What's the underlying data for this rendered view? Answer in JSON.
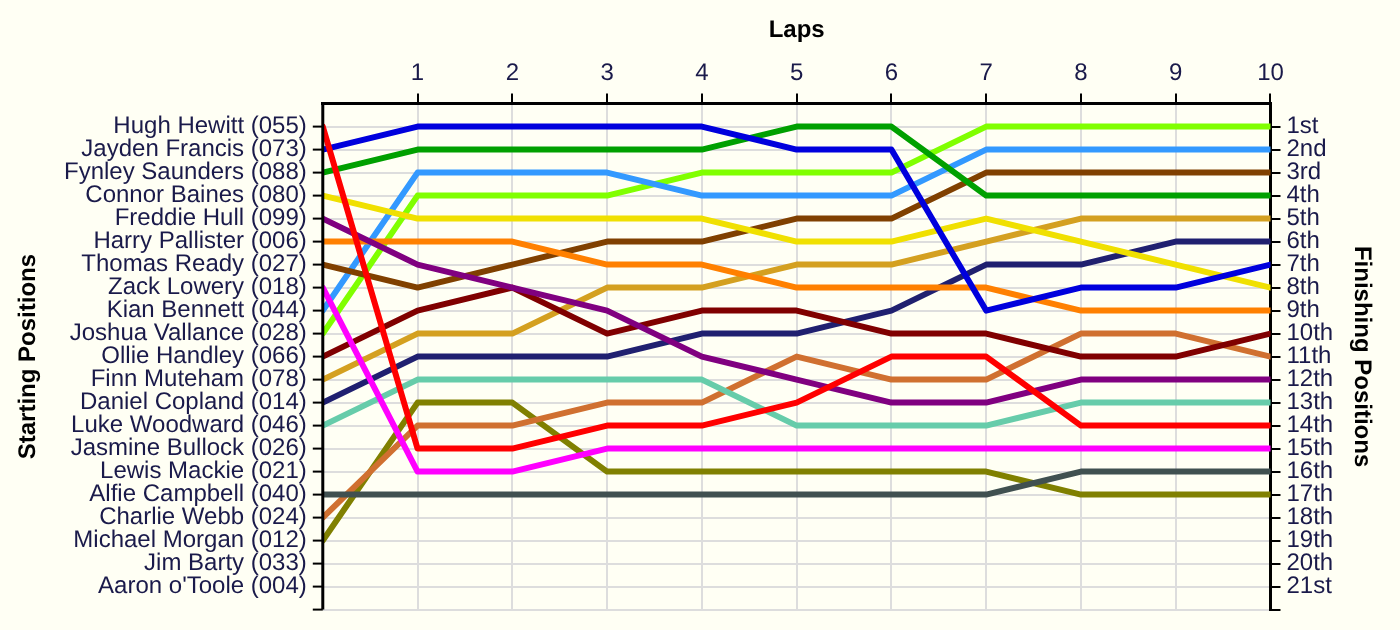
{
  "chart_data": {
    "type": "line",
    "xlabel": "Laps",
    "y2label": "Finishing Positions",
    "x": [
      0,
      1,
      2,
      3,
      4,
      5,
      6,
      7,
      8,
      9,
      10
    ],
    "xlim": [
      0,
      10
    ],
    "xticks": [
      1,
      2,
      3,
      4,
      5,
      6,
      7,
      8,
      9,
      10
    ],
    "annotations": [
      "Hugh Hewitt (055)",
      "Jayden Francis (073)",
      "Fynley Saunders (088)",
      "Connor Baines (080)",
      "Freddie Hull (099)",
      "Harry Pallister (006)",
      "Thomas Ready (027)",
      "Zack Lowery (018)",
      "Kian Bennett (044)",
      "Joshua Vallance (028)",
      "Ollie Handley (066)",
      "Finn Muteham (078)",
      "Daniel Copland (014)",
      "Luke Woodward (046)",
      "Jasmine Bullock (026)",
      "Lewis Mackie (021)",
      "Alfie Campbell (040)",
      "Charlie Webb (024)",
      "Michael Morgan (012)",
      "Jim Barty (033)",
      "Aaron o'Toole (004)",
      "Starting Positions"
    ],
    "y2lim": [
      22,
      0
    ],
    "y2ticks": [
      {
        "value": 1,
        "label": "1st"
      },
      {
        "value": 2,
        "label": "2nd"
      },
      {
        "value": 3,
        "label": "3rd"
      },
      {
        "value": 4,
        "label": "4th"
      },
      {
        "value": 5,
        "label": "5th"
      },
      {
        "value": 6,
        "label": "6th"
      },
      {
        "value": 7,
        "label": "7th"
      },
      {
        "value": 8,
        "label": "8th"
      },
      {
        "value": 9,
        "label": "9th"
      },
      {
        "value": 10,
        "label": "10th"
      },
      {
        "value": 11,
        "label": "11th"
      },
      {
        "value": 12,
        "label": "12th"
      },
      {
        "value": 13,
        "label": "13th"
      },
      {
        "value": 14,
        "label": "14th"
      },
      {
        "value": 15,
        "label": "15th"
      },
      {
        "value": 16,
        "label": "16th"
      },
      {
        "value": 17,
        "label": "17th"
      },
      {
        "value": 18,
        "label": "18th"
      },
      {
        "value": 19,
        "label": "19th"
      },
      {
        "value": 20,
        "label": "20th"
      },
      {
        "value": 21,
        "label": "21st"
      },
      {
        "value": 22,
        "label": null
      }
    ],
    "grid": true,
    "legend": false,
    "marker": "none",
    "line_style": "solid",
    "series": [
      {
        "color": "#ff0000",
        "axis": "y2",
        "values": [
          1,
          15,
          15,
          14,
          14,
          13,
          11,
          11,
          14,
          14,
          14
        ]
      },
      {
        "color": "#0000dd",
        "axis": "y2",
        "values": [
          2,
          1,
          1,
          1,
          1,
          2,
          2,
          9,
          8,
          8,
          7
        ]
      },
      {
        "color": "#00a000",
        "axis": "y2",
        "values": [
          3,
          2,
          2,
          2,
          2,
          1,
          1,
          4,
          4,
          4,
          4
        ]
      },
      {
        "color": "#f0e000",
        "axis": "y2",
        "values": [
          4,
          5,
          5,
          5,
          5,
          6,
          6,
          5,
          6,
          7,
          8
        ]
      },
      {
        "color": "#800080",
        "axis": "y2",
        "values": [
          5,
          7,
          8,
          9,
          11,
          12,
          13,
          13,
          12,
          12,
          12
        ]
      },
      {
        "color": "#ff8000",
        "axis": "y2",
        "values": [
          6,
          6,
          6,
          7,
          7,
          8,
          8,
          8,
          9,
          9,
          9
        ]
      },
      {
        "color": "#804000",
        "axis": "y2",
        "values": [
          7,
          8,
          7,
          6,
          6,
          5,
          5,
          3,
          3,
          3,
          3
        ]
      },
      {
        "color": "#ff00ff",
        "axis": "y2",
        "values": [
          8,
          16,
          16,
          15,
          15,
          15,
          15,
          15,
          15,
          15,
          15
        ]
      },
      {
        "color": "#3399ff",
        "axis": "y2",
        "values": [
          9,
          3,
          3,
          3,
          4,
          4,
          4,
          2,
          2,
          2,
          2
        ]
      },
      {
        "color": "#80ff00",
        "axis": "y2",
        "values": [
          10,
          4,
          4,
          4,
          3,
          3,
          3,
          1,
          1,
          1,
          1
        ]
      },
      {
        "color": "#800000",
        "axis": "y2",
        "values": [
          11,
          9,
          8,
          10,
          9,
          9,
          10,
          10,
          11,
          11,
          10
        ]
      },
      {
        "color": "#d4a020",
        "axis": "y2",
        "values": [
          12,
          10,
          10,
          8,
          8,
          7,
          7,
          6,
          5,
          5,
          5
        ]
      },
      {
        "color": "#202070",
        "axis": "y2",
        "values": [
          13,
          11,
          11,
          11,
          10,
          10,
          9,
          7,
          7,
          6,
          6
        ]
      },
      {
        "color": "#66ccaa",
        "axis": "y2",
        "values": [
          14,
          12,
          12,
          12,
          12,
          14,
          14,
          14,
          13,
          13,
          13
        ]
      },
      {
        "color": "#405050",
        "axis": "y2",
        "values": [
          17,
          17,
          17,
          17,
          17,
          17,
          17,
          17,
          16,
          16,
          16
        ]
      },
      {
        "color": "#d07030",
        "axis": "y2",
        "values": [
          18,
          14,
          14,
          13,
          13,
          11,
          12,
          12,
          10,
          10,
          11
        ]
      },
      {
        "color": "#808000",
        "axis": "y2",
        "values": [
          19,
          13,
          13,
          16,
          16,
          16,
          16,
          16,
          17,
          17,
          17
        ]
      }
    ]
  }
}
